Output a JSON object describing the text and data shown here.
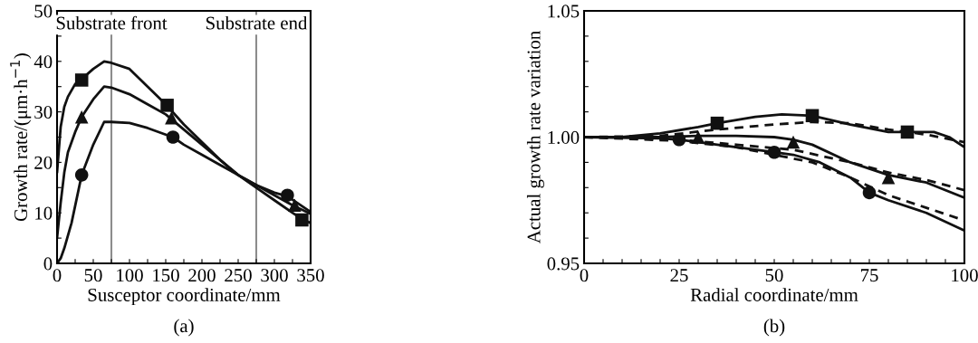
{
  "chart_data": [
    {
      "type": "line",
      "xlabel": "Susceptor coordinate/mm",
      "ylabel": "Growth rate/(μm·h$^{−1}$)",
      "annotations": [
        "(a)"
      ],
      "xlim": [
        0,
        350
      ],
      "xticks": [
        0,
        {
          "value": 25,
          "label": null
        },
        50,
        {
          "value": 75,
          "label": null
        },
        100,
        {
          "value": 125,
          "label": null
        },
        150,
        {
          "value": 175,
          "label": null
        },
        200,
        {
          "value": 225,
          "label": null
        },
        250,
        {
          "value": 275,
          "label": null
        },
        300,
        {
          "value": 325,
          "label": null
        },
        350
      ],
      "ylim": [
        0,
        50
      ],
      "yticks": [
        0,
        {
          "value": 5,
          "label": null
        },
        10,
        {
          "value": 15,
          "label": null
        },
        20,
        {
          "value": 25,
          "label": null
        },
        30,
        {
          "value": 35,
          "label": null
        },
        40,
        {
          "value": 45,
          "label": null
        },
        50
      ],
      "grid": false,
      "legend": false,
      "ref_lines": [
        {
          "axis": "x",
          "value": 75,
          "label": "Substrate front",
          "color": "#8c8c8c"
        },
        {
          "axis": "x",
          "value": 275,
          "label": "Substrate end",
          "color": "#8c8c8c"
        }
      ],
      "series": [
        {
          "color": "#111111",
          "line_style": "solid",
          "marker": "none",
          "x": [
            0,
            5,
            10,
            15,
            25,
            34,
            50,
            65,
            75,
            100,
            125,
            150,
            175,
            200,
            225,
            250,
            275,
            300,
            325,
            340,
            350
          ],
          "values": [
            18,
            27,
            31,
            33,
            35.5,
            36.5,
            38.5,
            40,
            39.7,
            38.5,
            35,
            31.5,
            27.5,
            24,
            20.5,
            17.5,
            15,
            12.5,
            10,
            8.6,
            8
          ]
        },
        {
          "color": "#111111",
          "line_style": "solid",
          "marker": "none",
          "x": [
            0,
            5,
            10,
            15,
            25,
            34,
            50,
            65,
            75,
            100,
            125,
            150,
            175,
            200,
            225,
            250,
            275,
            300,
            325,
            350
          ],
          "values": [
            5,
            12,
            18,
            22,
            26,
            29,
            32.5,
            35,
            34.8,
            33.5,
            31.5,
            29.5,
            26.5,
            23.5,
            20.5,
            17.5,
            15.5,
            13.5,
            11.5,
            9.8
          ]
        },
        {
          "color": "#111111",
          "line_style": "solid",
          "marker": "none",
          "x": [
            0,
            5,
            10,
            20,
            34,
            50,
            65,
            75,
            100,
            125,
            150,
            160,
            175,
            200,
            225,
            250,
            275,
            300,
            318,
            350
          ],
          "values": [
            0,
            1,
            3,
            8,
            17.5,
            23.5,
            28,
            28,
            27.8,
            26.8,
            25.5,
            25,
            23.5,
            21.5,
            19.5,
            17.5,
            15.5,
            14,
            13.3,
            10.2
          ]
        },
        {
          "type": "scatter",
          "color": "#111111",
          "marker": "square",
          "x": [
            34,
            152,
            338
          ],
          "values": [
            36.3,
            31.3,
            8.6
          ]
        },
        {
          "type": "scatter",
          "color": "#111111",
          "marker": "triangle",
          "x": [
            34,
            158,
            328
          ],
          "values": [
            29,
            28.8,
            11.5
          ]
        },
        {
          "type": "scatter",
          "color": "#111111",
          "marker": "circle",
          "x": [
            34,
            160,
            318
          ],
          "values": [
            17.5,
            25,
            13.5
          ]
        }
      ]
    },
    {
      "type": "line",
      "xlabel": "Radial coordinate/mm",
      "ylabel": "Actual growth rate variation",
      "annotations": [
        "(b)"
      ],
      "xlim": [
        0,
        100
      ],
      "xticks": [
        0,
        {
          "value": 5,
          "label": null
        },
        {
          "value": 10,
          "label": null
        },
        {
          "value": 15,
          "label": null
        },
        {
          "value": 20,
          "label": null
        },
        25,
        {
          "value": 30,
          "label": null
        },
        {
          "value": 35,
          "label": null
        },
        {
          "value": 40,
          "label": null
        },
        {
          "value": 45,
          "label": null
        },
        50,
        {
          "value": 55,
          "label": null
        },
        {
          "value": 60,
          "label": null
        },
        {
          "value": 65,
          "label": null
        },
        {
          "value": 70,
          "label": null
        },
        75,
        {
          "value": 80,
          "label": null
        },
        {
          "value": 85,
          "label": null
        },
        {
          "value": 90,
          "label": null
        },
        {
          "value": 95,
          "label": null
        },
        100
      ],
      "ylim": [
        0.95,
        1.05
      ],
      "yticks": [
        0.95,
        {
          "value": 0.96,
          "label": null
        },
        {
          "value": 0.97,
          "label": null
        },
        {
          "value": 0.98,
          "label": null
        },
        {
          "value": 0.99,
          "label": null
        },
        {
          "value": 1.0,
          "label": "1.00"
        },
        {
          "value": 1.01,
          "label": null
        },
        {
          "value": 1.02,
          "label": null
        },
        {
          "value": 1.03,
          "label": null
        },
        {
          "value": 1.04,
          "label": null
        },
        1.05
      ],
      "grid": false,
      "legend": false,
      "series": [
        {
          "color": "#111111",
          "line_style": "solid",
          "marker": "none",
          "x": [
            0,
            10,
            20,
            30,
            35,
            45,
            52,
            60,
            70,
            80,
            85,
            92,
            96,
            100
          ],
          "values": [
            1.0,
            1.0,
            1.0015,
            1.004,
            1.0055,
            1.008,
            1.009,
            1.0085,
            1.005,
            1.002,
            1.002,
            1.002,
            1.0,
            0.996
          ]
        },
        {
          "color": "#111111",
          "line_style": "dashed",
          "marker": "none",
          "x": [
            0,
            20,
            35,
            50,
            60,
            70,
            80,
            90,
            100
          ],
          "values": [
            1.0,
            1.0005,
            1.003,
            1.005,
            1.006,
            1.0055,
            1.003,
            1.001,
            0.998
          ]
        },
        {
          "color": "#111111",
          "line_style": "solid",
          "marker": "none",
          "x": [
            0,
            20,
            30,
            40,
            50,
            55,
            60,
            70,
            80,
            90,
            100
          ],
          "values": [
            1.0,
            1.0,
            1.0005,
            1.0005,
            1.0,
            0.999,
            0.997,
            0.99,
            0.985,
            0.982,
            0.976
          ]
        },
        {
          "color": "#111111",
          "line_style": "dashed",
          "marker": "none",
          "x": [
            0,
            25,
            40,
            55,
            70,
            80,
            90,
            100
          ],
          "values": [
            1.0,
            0.999,
            0.997,
            0.995,
            0.99,
            0.986,
            0.983,
            0.979
          ]
        },
        {
          "color": "#111111",
          "line_style": "solid",
          "marker": "none",
          "x": [
            0,
            20,
            25,
            35,
            50,
            55,
            62,
            70,
            75,
            80,
            90,
            100
          ],
          "values": [
            1.0,
            0.9995,
            0.999,
            0.997,
            0.994,
            0.993,
            0.99,
            0.984,
            0.978,
            0.975,
            0.97,
            0.963
          ]
        },
        {
          "color": "#111111",
          "line_style": "dashed",
          "marker": "none",
          "x": [
            0,
            25,
            40,
            50,
            60,
            70,
            80,
            90,
            100
          ],
          "values": [
            1.0,
            0.9985,
            0.996,
            0.993,
            0.99,
            0.984,
            0.977,
            0.972,
            0.967
          ]
        },
        {
          "type": "scatter",
          "color": "#111111",
          "marker": "square",
          "x": [
            35,
            60,
            85
          ],
          "values": [
            1.0055,
            1.0085,
            1.002
          ]
        },
        {
          "type": "scatter",
          "color": "#111111",
          "marker": "triangle",
          "x": [
            30,
            55,
            80
          ],
          "values": [
            1.0,
            0.998,
            0.984
          ]
        },
        {
          "type": "scatter",
          "color": "#111111",
          "marker": "circle",
          "x": [
            25,
            50,
            75
          ],
          "values": [
            0.999,
            0.994,
            0.978
          ]
        }
      ]
    }
  ]
}
